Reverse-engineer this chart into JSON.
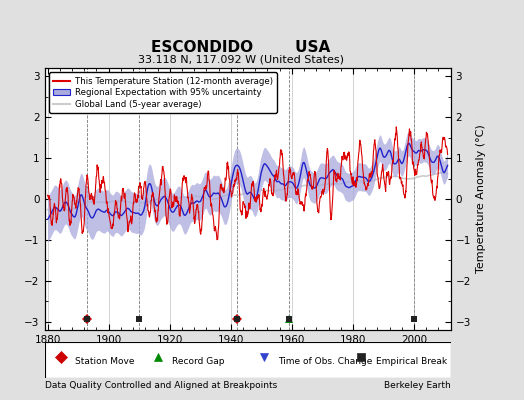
{
  "title_line1": "ESCONDIDO        USA",
  "title_line2": "33.118 N, 117.092 W (United States)",
  "ylabel": "Temperature Anomaly (°C)",
  "xlabel_bottom": "Data Quality Controlled and Aligned at Breakpoints",
  "xlabel_right": "Berkeley Earth",
  "year_start": 1880,
  "year_end": 2011,
  "ylim": [
    -3.2,
    3.2
  ],
  "yticks": [
    -3,
    -2,
    -1,
    0,
    1,
    2,
    3
  ],
  "xticks": [
    1880,
    1900,
    1920,
    1940,
    1960,
    1980,
    2000
  ],
  "bg_color": "#e0e0e0",
  "plot_bg_color": "#ffffff",
  "station_color": "#dd0000",
  "regional_line_color": "#2222cc",
  "regional_fill_color": "#aaaadd",
  "global_color": "#cccccc",
  "legend_entries": [
    "This Temperature Station (12-month average)",
    "Regional Expectation with 95% uncertainty",
    "Global Land (5-year average)"
  ],
  "marker_station_years": [
    1893,
    1942
  ],
  "marker_gap_years": [
    1959
  ],
  "marker_tobs_years": [],
  "marker_emp_years": [
    1893,
    1910,
    1942,
    1959,
    2000
  ],
  "vline_years": [
    1893,
    1910,
    1942,
    1959,
    2000
  ],
  "grid_color": "#999999"
}
